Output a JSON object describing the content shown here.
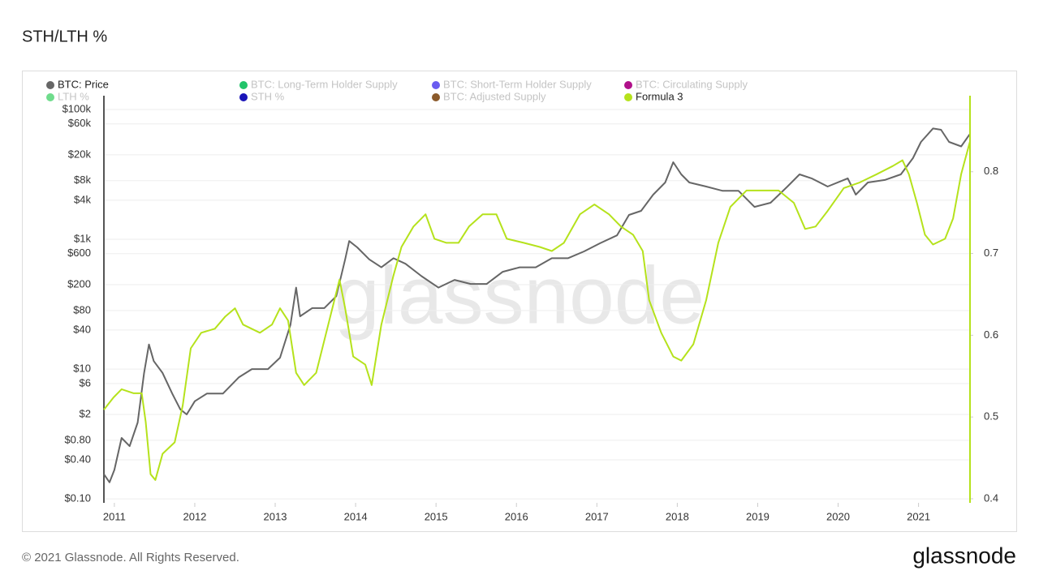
{
  "chart_data": {
    "type": "line",
    "title": "STH/LTH %",
    "watermark": "glassnode",
    "footer": "© 2021 Glassnode. All Rights Reserved.",
    "logo": "glassnode",
    "y_scale": "log",
    "grid": true,
    "xlim": [
      2010.87,
      2021.64
    ],
    "xticks": [
      2011,
      2012,
      2013,
      2014,
      2015,
      2016,
      2017,
      2018,
      2019,
      2020,
      2021
    ],
    "ylim": [
      0.087,
      163000
    ],
    "yticks": [
      {
        "value": 0.1,
        "label": "$0.10"
      },
      {
        "value": 0.4,
        "label": "$0.40"
      },
      {
        "value": 0.8,
        "label": "$0.80"
      },
      {
        "value": 2,
        "label": "$2"
      },
      {
        "value": 6,
        "label": "$6"
      },
      {
        "value": 10,
        "label": "$10"
      },
      {
        "value": 40,
        "label": "$40"
      },
      {
        "value": 80,
        "label": "$80"
      },
      {
        "value": 200,
        "label": "$200"
      },
      {
        "value": 600,
        "label": "$600"
      },
      {
        "value": 1000,
        "label": "$1k"
      },
      {
        "value": 4000,
        "label": "$4k"
      },
      {
        "value": 8000,
        "label": "$8k"
      },
      {
        "value": 20000,
        "label": "$20k"
      },
      {
        "value": 60000,
        "label": "$60k"
      },
      {
        "value": 100000,
        "label": "$100k"
      }
    ],
    "y2lim": [
      0.395,
      0.893
    ],
    "y2ticks": [
      0.4,
      0.5,
      0.6,
      0.7,
      0.8
    ],
    "series": [
      {
        "name": "BTC: Price",
        "color": "#666666",
        "visible": true,
        "axis": "y",
        "x": [
          2010.87,
          2010.94,
          2011.0,
          2011.09,
          2011.19,
          2011.29,
          2011.37,
          2011.43,
          2011.49,
          2011.6,
          2011.72,
          2011.82,
          2011.9,
          2012.0,
          2012.15,
          2012.35,
          2012.55,
          2012.71,
          2012.91,
          2013.06,
          2013.19,
          2013.26,
          2013.31,
          2013.46,
          2013.61,
          2013.76,
          2013.87,
          2013.92,
          2014.02,
          2014.17,
          2014.32,
          2014.47,
          2014.62,
          2014.82,
          2015.03,
          2015.23,
          2015.43,
          2015.63,
          2015.83,
          2016.04,
          2016.24,
          2016.44,
          2016.64,
          2016.84,
          2017.04,
          2017.25,
          2017.4,
          2017.55,
          2017.7,
          2017.85,
          2017.95,
          2018.05,
          2018.15,
          2018.36,
          2018.56,
          2018.76,
          2018.96,
          2019.16,
          2019.37,
          2019.52,
          2019.67,
          2019.87,
          2020.12,
          2020.22,
          2020.37,
          2020.58,
          2020.78,
          2020.93,
          2021.03,
          2021.18,
          2021.28,
          2021.38,
          2021.53,
          2021.64
        ],
        "values": [
          0.24,
          0.18,
          0.28,
          0.87,
          0.65,
          1.5,
          8.7,
          24,
          13.3,
          8.7,
          4.2,
          2.4,
          2.0,
          3.2,
          4.2,
          4.2,
          7.5,
          10,
          10,
          15,
          48,
          180,
          65,
          87,
          87,
          133,
          490,
          940,
          750,
          490,
          370,
          510,
          420,
          270,
          180,
          237,
          205,
          205,
          316,
          370,
          370,
          510,
          510,
          650,
          870,
          1150,
          2370,
          2740,
          4870,
          7500,
          15400,
          10000,
          7500,
          6500,
          5600,
          5600,
          3160,
          3650,
          6500,
          10000,
          8700,
          6500,
          8700,
          4870,
          7500,
          8200,
          10000,
          17800,
          31600,
          51000,
          48700,
          31600,
          27000,
          42000
        ]
      },
      {
        "name": "BTC: Long-Term Holder Supply",
        "color": "#22c46a",
        "visible": false
      },
      {
        "name": "BTC: Short-Term Holder Supply",
        "color": "#6a5cf0",
        "visible": false
      },
      {
        "name": "BTC: Circulating Supply",
        "color": "#b0108a",
        "visible": false
      },
      {
        "name": "LTH %",
        "color": "#6fdc8c",
        "visible": false
      },
      {
        "name": "STH %",
        "color": "#1a14b8",
        "visible": false
      },
      {
        "name": "BTC: Adjusted Supply",
        "color": "#8b5a2b",
        "visible": false
      },
      {
        "name": "Formula 3",
        "color": "#b5e21c",
        "visible": true,
        "axis": "y2",
        "x": [
          2010.87,
          2010.99,
          2011.09,
          2011.24,
          2011.34,
          2011.39,
          2011.45,
          2011.51,
          2011.6,
          2011.75,
          2011.85,
          2011.95,
          2012.08,
          2012.25,
          2012.38,
          2012.5,
          2012.6,
          2012.81,
          2012.96,
          2013.06,
          2013.16,
          2013.26,
          2013.36,
          2013.51,
          2013.66,
          2013.8,
          2013.87,
          2013.97,
          2014.12,
          2014.2,
          2014.32,
          2014.47,
          2014.57,
          2014.72,
          2014.87,
          2014.98,
          2015.13,
          2015.28,
          2015.41,
          2015.58,
          2015.75,
          2015.88,
          2016.09,
          2016.29,
          2016.44,
          2016.59,
          2016.79,
          2016.97,
          2017.15,
          2017.3,
          2017.45,
          2017.57,
          2017.65,
          2017.8,
          2017.95,
          2018.05,
          2018.2,
          2018.36,
          2018.51,
          2018.66,
          2018.86,
          2019.06,
          2019.26,
          2019.45,
          2019.59,
          2019.72,
          2019.87,
          2020.07,
          2020.27,
          2020.48,
          2020.68,
          2020.8,
          2020.88,
          2020.98,
          2021.08,
          2021.18,
          2021.33,
          2021.43,
          2021.53,
          2021.64
        ],
        "values": [
          0.509,
          0.524,
          0.534,
          0.529,
          0.529,
          0.494,
          0.43,
          0.423,
          0.455,
          0.469,
          0.514,
          0.584,
          0.603,
          0.608,
          0.623,
          0.633,
          0.613,
          0.603,
          0.613,
          0.633,
          0.618,
          0.554,
          0.539,
          0.554,
          0.613,
          0.668,
          0.633,
          0.574,
          0.564,
          0.539,
          0.613,
          0.673,
          0.708,
          0.733,
          0.748,
          0.718,
          0.713,
          0.713,
          0.733,
          0.748,
          0.748,
          0.718,
          0.713,
          0.708,
          0.703,
          0.713,
          0.748,
          0.76,
          0.748,
          0.733,
          0.723,
          0.703,
          0.643,
          0.603,
          0.574,
          0.569,
          0.589,
          0.643,
          0.713,
          0.757,
          0.777,
          0.777,
          0.777,
          0.762,
          0.73,
          0.733,
          0.752,
          0.78,
          0.787,
          0.797,
          0.807,
          0.814,
          0.797,
          0.762,
          0.723,
          0.711,
          0.718,
          0.743,
          0.797,
          0.837
        ]
      }
    ]
  }
}
